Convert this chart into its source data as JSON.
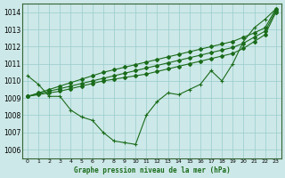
{
  "title": "Graphe pression niveau de la mer (hPa)",
  "bg_color": "#cde8e8",
  "grid_color": "#99cccc",
  "line_color": "#1a6b1a",
  "xlim": [
    -0.5,
    23.5
  ],
  "ylim": [
    1005.5,
    1014.5
  ],
  "yticks": [
    1006,
    1007,
    1008,
    1009,
    1010,
    1011,
    1012,
    1013,
    1014
  ],
  "xticks": [
    0,
    1,
    2,
    3,
    4,
    5,
    6,
    7,
    8,
    9,
    10,
    11,
    12,
    13,
    14,
    15,
    16,
    17,
    18,
    19,
    20,
    21,
    22,
    23
  ],
  "series_wavy": [
    1010.3,
    1009.8,
    1009.1,
    1009.1,
    1008.3,
    1007.9,
    1007.7,
    1007.0,
    1006.5,
    1006.4,
    1006.3,
    1008.0,
    1008.8,
    1009.3,
    1009.2,
    1009.5,
    1009.8,
    1010.6,
    1010.0,
    1011.0,
    1012.3,
    1013.1,
    1013.6,
    1014.2
  ],
  "series_straight1": [
    1009.1,
    1009.3,
    1009.5,
    1009.7,
    1009.9,
    1010.1,
    1010.3,
    1010.5,
    1010.65,
    1010.8,
    1010.95,
    1011.1,
    1011.25,
    1011.4,
    1011.55,
    1011.7,
    1011.85,
    1012.0,
    1012.15,
    1012.3,
    1012.55,
    1012.8,
    1013.1,
    1014.2
  ],
  "series_straight2": [
    1009.1,
    1009.25,
    1009.4,
    1009.55,
    1009.7,
    1009.85,
    1010.0,
    1010.15,
    1010.3,
    1010.45,
    1010.6,
    1010.75,
    1010.9,
    1011.05,
    1011.2,
    1011.35,
    1011.5,
    1011.65,
    1011.8,
    1011.95,
    1012.2,
    1012.55,
    1012.9,
    1014.1
  ],
  "series_straight3": [
    1009.1,
    1009.2,
    1009.3,
    1009.4,
    1009.55,
    1009.7,
    1009.85,
    1010.0,
    1010.1,
    1010.2,
    1010.3,
    1010.4,
    1010.55,
    1010.7,
    1010.85,
    1011.0,
    1011.15,
    1011.3,
    1011.45,
    1011.6,
    1011.9,
    1012.3,
    1012.7,
    1014.0
  ]
}
